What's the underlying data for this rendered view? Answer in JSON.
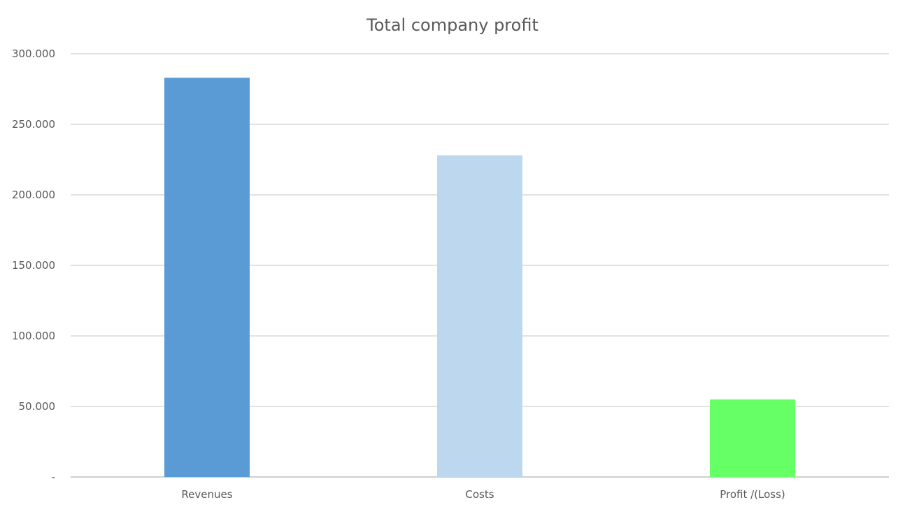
{
  "chart_data": {
    "type": "bar",
    "title": "Total company profit",
    "categories": [
      "Revenues",
      "Costs",
      "Profit /(Loss)"
    ],
    "values": [
      283000,
      228000,
      55000
    ],
    "colors": [
      "#5b9bd5",
      "#bdd7ee",
      "#66ff66"
    ],
    "ylim": [
      0,
      300000
    ],
    "yticks": [
      0,
      50000,
      100000,
      150000,
      200000,
      250000,
      300000
    ],
    "ytick_labels": [
      "-",
      "50.000",
      "100.000",
      "150.000",
      "200.000",
      "250.000",
      "300.000"
    ],
    "grid": true,
    "legend": "none"
  }
}
